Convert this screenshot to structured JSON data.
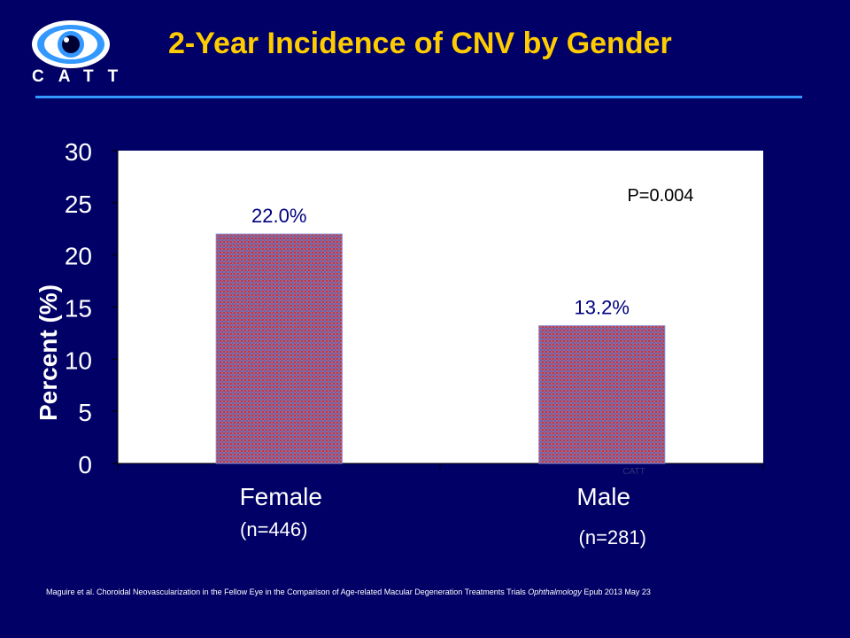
{
  "logo": {
    "text": "CATT"
  },
  "title": "2-Year Incidence of CNV by Gender",
  "chart_data": {
    "type": "bar",
    "categories": [
      "Female",
      "Male"
    ],
    "sublabels": [
      "(n=446)",
      "(n=281)"
    ],
    "values": [
      22.0,
      13.2
    ],
    "data_labels": [
      "22.0%",
      "13.2%"
    ],
    "ylabel": "Percent (%)",
    "ylim": [
      0,
      30
    ],
    "yticks": [
      0,
      5,
      10,
      15,
      20,
      25,
      30
    ],
    "annotation": "P=0.004",
    "watermark": "CATT",
    "grid": false
  },
  "footnote": {
    "prefix": "Maguire et al. Choroidal Neovascularization in the Fellow Eye in the Comparison of Age-related Macular Degeneration Treatments Trials ",
    "journal": "Ophthalmology",
    "suffix": " Epub 2013 May 23"
  },
  "colors": {
    "background": "#000066",
    "title": "#ffcc00",
    "rule": "#3399ff",
    "plot_area": "#ffffff",
    "bar_fill": "#996699",
    "bar_dot": "#cc3333",
    "data_label": "#000080"
  }
}
